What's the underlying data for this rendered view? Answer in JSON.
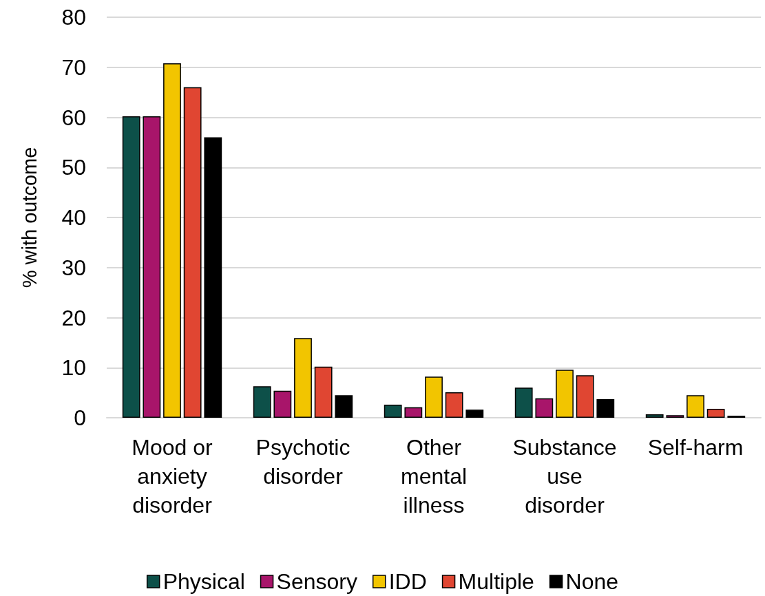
{
  "chart_data": {
    "type": "bar",
    "ylabel": "% with outcome",
    "categories": [
      "Mood or\nanxiety\ndisorder",
      "Psychotic\ndisorder",
      "Other\nmental\nillness",
      "Substance\nuse\ndisorder",
      "Self-harm"
    ],
    "series": [
      {
        "name": "Physical",
        "color": "#0d5049",
        "values": [
          60.2,
          6.3,
          2.6,
          6.0,
          0.7
        ]
      },
      {
        "name": "Sensory",
        "color": "#a8156a",
        "values": [
          60.2,
          5.4,
          2.1,
          3.9,
          0.5
        ]
      },
      {
        "name": "IDD",
        "color": "#f2c500",
        "values": [
          70.8,
          15.9,
          8.2,
          9.6,
          4.5
        ]
      },
      {
        "name": "Multiple",
        "color": "#e04632",
        "values": [
          66.0,
          10.2,
          5.1,
          8.5,
          1.8
        ]
      },
      {
        "name": "None",
        "color": "#000000",
        "values": [
          56.0,
          4.5,
          1.6,
          3.7,
          0.4
        ]
      }
    ],
    "ylim": [
      0,
      80
    ],
    "yticks": [
      0,
      10,
      20,
      30,
      40,
      50,
      60,
      70,
      80
    ],
    "grid": "y",
    "legend": "bottom"
  }
}
